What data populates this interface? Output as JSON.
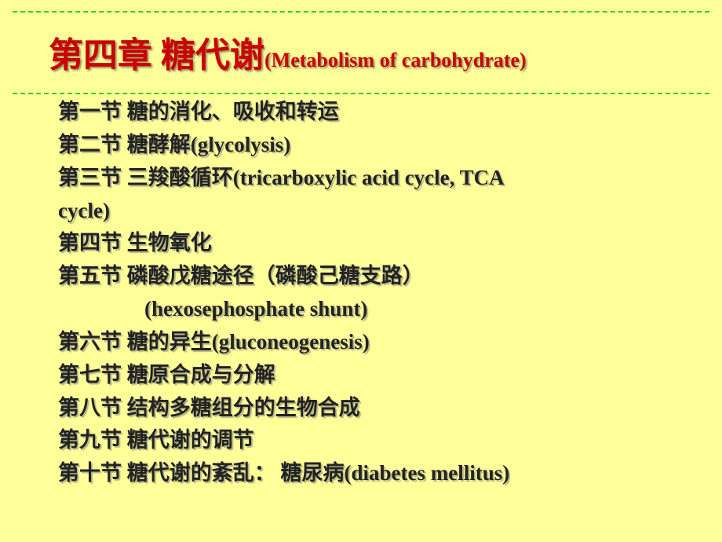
{
  "title": {
    "main": "第四章  糖代谢",
    "sub": "(Metabolism of carbohydrate)"
  },
  "sections": [
    {
      "cn": "第一节  糖的消化、吸收和转运",
      "en": ""
    },
    {
      "cn": "第二节  糖酵解",
      "en": "(glycolysis)"
    },
    {
      "cn": "第三节  三羧酸循环",
      "en": "(tricarboxylic acid cycle, TCA"
    },
    {
      "cn": "",
      "en": "cycle)",
      "wrap": true
    },
    {
      "cn": "第四节  生物氧化",
      "en": ""
    },
    {
      "cn": "第五节 磷酸戊糖途径（磷酸己糖支路）",
      "en": ""
    },
    {
      "cn": "",
      "en": "(hexosephosphate shunt)",
      "indent": true
    },
    {
      "cn": "第六节  糖的异生",
      "en": "(gluconeogenesis)"
    },
    {
      "cn": "第七节  糖原合成与分解",
      "en": ""
    },
    {
      "cn": "第八节  结构多糖组分的生物合成",
      "en": ""
    },
    {
      "cn": "第九节  糖代谢的调节",
      "en": ""
    },
    {
      "cn": "第十节  糖代谢的紊乱： 糖尿病",
      "en": "(diabetes mellitus)"
    }
  ],
  "style": {
    "background_color": "#ffff99",
    "title_color": "#cc0000",
    "body_text_color": "#222222",
    "shadow_color": "rgba(120,120,120,0.55)",
    "border_color": "#33cc33",
    "title_fontsize_main": 44,
    "title_fontsize_sub": 26,
    "body_fontsize": 27,
    "line_height": 1.55,
    "border_style": "dashed"
  }
}
